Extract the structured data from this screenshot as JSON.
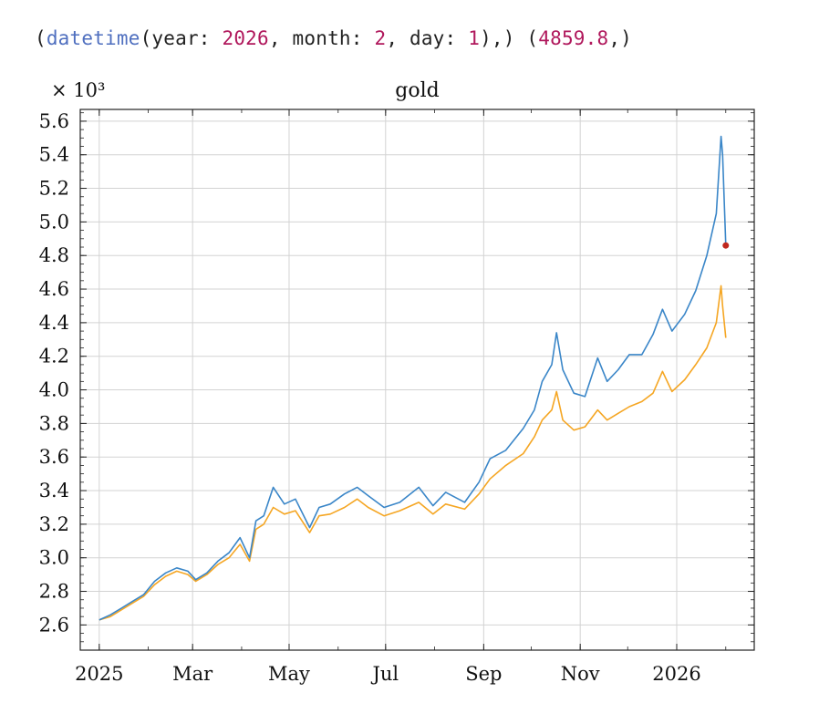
{
  "header": {
    "open_paren": "(",
    "fn": "datetime",
    "args_open": "(year: ",
    "year": "2026",
    "sep_month": ", month: ",
    "month": "2",
    "sep_day": ", day: ",
    "day": "1",
    "args_close": "),) (",
    "value": "4859.8",
    "close": ",)"
  },
  "chart_data": {
    "type": "line",
    "title": "gold",
    "y_multiplier_label": "× 10³",
    "xlabel": "",
    "ylabel": "",
    "x_ticks": [
      "2025",
      "Mar",
      "May",
      "Jul",
      "Sep",
      "Nov",
      "2026"
    ],
    "x_tick_dates": [
      "2025-01-01",
      "2025-03-01",
      "2025-05-01",
      "2025-07-01",
      "2025-09-01",
      "2025-11-01",
      "2026-01-01"
    ],
    "xlim": [
      "2024-12-20",
      "2026-02-19"
    ],
    "y_ticks": [
      "2.6",
      "2.8",
      "3.0",
      "3.2",
      "3.4",
      "3.6",
      "3.8",
      "4.0",
      "4.2",
      "4.4",
      "4.6",
      "4.8",
      "5.0",
      "5.2",
      "5.4",
      "5.6"
    ],
    "ylim": [
      2.45,
      5.67
    ],
    "grid": true,
    "colors": {
      "series_a": "#3a86c8",
      "series_b": "#f5a623",
      "marker": "#c0281e"
    },
    "series": [
      {
        "key": "upper",
        "color": "#3a86c8",
        "points": [
          [
            "2025-01-01",
            2.63
          ],
          [
            "2025-01-08",
            2.66
          ],
          [
            "2025-01-15",
            2.7
          ],
          [
            "2025-01-22",
            2.74
          ],
          [
            "2025-01-29",
            2.78
          ],
          [
            "2025-02-05",
            2.86
          ],
          [
            "2025-02-12",
            2.91
          ],
          [
            "2025-02-19",
            2.94
          ],
          [
            "2025-02-26",
            2.92
          ],
          [
            "2025-03-03",
            2.87
          ],
          [
            "2025-03-10",
            2.91
          ],
          [
            "2025-03-17",
            2.98
          ],
          [
            "2025-03-24",
            3.03
          ],
          [
            "2025-03-31",
            3.12
          ],
          [
            "2025-04-06",
            3.0
          ],
          [
            "2025-04-10",
            3.22
          ],
          [
            "2025-04-15",
            3.25
          ],
          [
            "2025-04-21",
            3.42
          ],
          [
            "2025-04-28",
            3.32
          ],
          [
            "2025-05-05",
            3.35
          ],
          [
            "2025-05-14",
            3.18
          ],
          [
            "2025-05-20",
            3.3
          ],
          [
            "2025-05-27",
            3.32
          ],
          [
            "2025-06-05",
            3.38
          ],
          [
            "2025-06-13",
            3.42
          ],
          [
            "2025-06-20",
            3.37
          ],
          [
            "2025-06-30",
            3.3
          ],
          [
            "2025-07-10",
            3.33
          ],
          [
            "2025-07-22",
            3.42
          ],
          [
            "2025-07-31",
            3.31
          ],
          [
            "2025-08-08",
            3.39
          ],
          [
            "2025-08-20",
            3.33
          ],
          [
            "2025-08-29",
            3.45
          ],
          [
            "2025-09-05",
            3.59
          ],
          [
            "2025-09-15",
            3.64
          ],
          [
            "2025-09-26",
            3.77
          ],
          [
            "2025-10-03",
            3.88
          ],
          [
            "2025-10-08",
            4.05
          ],
          [
            "2025-10-14",
            4.15
          ],
          [
            "2025-10-17",
            4.34
          ],
          [
            "2025-10-21",
            4.12
          ],
          [
            "2025-10-28",
            3.98
          ],
          [
            "2025-11-04",
            3.96
          ],
          [
            "2025-11-12",
            4.19
          ],
          [
            "2025-11-18",
            4.05
          ],
          [
            "2025-11-25",
            4.12
          ],
          [
            "2025-12-02",
            4.21
          ],
          [
            "2025-12-10",
            4.21
          ],
          [
            "2025-12-17",
            4.33
          ],
          [
            "2025-12-23",
            4.48
          ],
          [
            "2025-12-29",
            4.35
          ],
          [
            "2026-01-06",
            4.45
          ],
          [
            "2026-01-13",
            4.59
          ],
          [
            "2026-01-20",
            4.8
          ],
          [
            "2026-01-26",
            5.05
          ],
          [
            "2026-01-29",
            5.51
          ],
          [
            "2026-01-30",
            5.4
          ],
          [
            "2026-02-01",
            4.86
          ]
        ]
      },
      {
        "key": "lower",
        "color": "#f5a623",
        "points": [
          [
            "2025-01-01",
            2.63
          ],
          [
            "2025-01-08",
            2.65
          ],
          [
            "2025-01-15",
            2.69
          ],
          [
            "2025-01-22",
            2.73
          ],
          [
            "2025-01-29",
            2.77
          ],
          [
            "2025-02-05",
            2.84
          ],
          [
            "2025-02-12",
            2.89
          ],
          [
            "2025-02-19",
            2.92
          ],
          [
            "2025-02-26",
            2.9
          ],
          [
            "2025-03-03",
            2.86
          ],
          [
            "2025-03-10",
            2.9
          ],
          [
            "2025-03-17",
            2.96
          ],
          [
            "2025-03-24",
            3.0
          ],
          [
            "2025-03-31",
            3.08
          ],
          [
            "2025-04-06",
            2.98
          ],
          [
            "2025-04-10",
            3.17
          ],
          [
            "2025-04-15",
            3.2
          ],
          [
            "2025-04-21",
            3.3
          ],
          [
            "2025-04-28",
            3.26
          ],
          [
            "2025-05-05",
            3.28
          ],
          [
            "2025-05-14",
            3.15
          ],
          [
            "2025-05-20",
            3.25
          ],
          [
            "2025-05-27",
            3.26
          ],
          [
            "2025-06-05",
            3.3
          ],
          [
            "2025-06-13",
            3.35
          ],
          [
            "2025-06-20",
            3.3
          ],
          [
            "2025-06-30",
            3.25
          ],
          [
            "2025-07-10",
            3.28
          ],
          [
            "2025-07-22",
            3.33
          ],
          [
            "2025-07-31",
            3.26
          ],
          [
            "2025-08-08",
            3.32
          ],
          [
            "2025-08-20",
            3.29
          ],
          [
            "2025-08-29",
            3.38
          ],
          [
            "2025-09-05",
            3.47
          ],
          [
            "2025-09-15",
            3.55
          ],
          [
            "2025-09-26",
            3.62
          ],
          [
            "2025-10-03",
            3.72
          ],
          [
            "2025-10-08",
            3.82
          ],
          [
            "2025-10-14",
            3.88
          ],
          [
            "2025-10-17",
            3.99
          ],
          [
            "2025-10-21",
            3.82
          ],
          [
            "2025-10-28",
            3.76
          ],
          [
            "2025-11-04",
            3.78
          ],
          [
            "2025-11-12",
            3.88
          ],
          [
            "2025-11-18",
            3.82
          ],
          [
            "2025-11-25",
            3.86
          ],
          [
            "2025-12-02",
            3.9
          ],
          [
            "2025-12-10",
            3.93
          ],
          [
            "2025-12-17",
            3.98
          ],
          [
            "2025-12-23",
            4.11
          ],
          [
            "2025-12-29",
            3.99
          ],
          [
            "2026-01-06",
            4.06
          ],
          [
            "2026-01-13",
            4.15
          ],
          [
            "2026-01-20",
            4.25
          ],
          [
            "2026-01-26",
            4.4
          ],
          [
            "2026-01-29",
            4.62
          ],
          [
            "2026-01-30",
            4.5
          ],
          [
            "2026-02-01",
            4.31
          ]
        ]
      }
    ],
    "highlight_point": {
      "x": "2026-02-01",
      "y": 4.8598
    }
  }
}
